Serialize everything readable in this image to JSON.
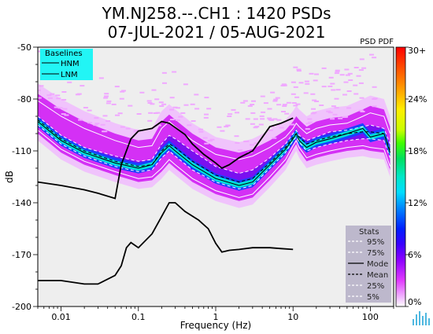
{
  "chart_data": {
    "type": "line",
    "title": [
      "YM.NJ258.--.CH1 : 1420 PSDs",
      "07-JUL-2021 / 05-AUG-2021"
    ],
    "xlabel": "Frequency (Hz)",
    "ylabel": "dB",
    "xscale": "log",
    "xlim": [
      0.005,
      200
    ],
    "ylim": [
      -200,
      -50
    ],
    "xticks": [
      0.01,
      0.1,
      1,
      10,
      100
    ],
    "xtick_labels": [
      "0.01",
      "0.1",
      "1",
      "10",
      "100"
    ],
    "yticks": [
      -50,
      -80,
      -110,
      -140,
      -170,
      -200
    ],
    "ytick_labels": [
      "-50",
      "-80",
      "-110",
      "-140",
      "-170",
      "-200"
    ],
    "baselines": {
      "title": "Baselines",
      "entries": [
        "HNM",
        "LNM"
      ],
      "HNM": {
        "x": [
          0.005,
          0.01,
          0.02,
          0.03,
          0.05,
          0.06,
          0.08,
          0.1,
          0.15,
          0.2,
          0.25,
          0.3,
          0.4,
          0.5,
          0.7,
          1.0,
          1.2,
          1.5,
          2.0,
          3.0,
          5.0,
          7.0,
          10.0
        ],
        "y": [
          -128,
          -130,
          -132.5,
          -134.5,
          -137.5,
          -118,
          -103,
          -98.5,
          -97,
          -93,
          -94,
          -96.5,
          -100.5,
          -106,
          -112,
          -117,
          -120,
          -118,
          -114,
          -110,
          -96,
          -94,
          -91
        ]
      },
      "LNM": {
        "x": [
          0.005,
          0.01,
          0.02,
          0.03,
          0.05,
          0.06,
          0.07,
          0.08,
          0.1,
          0.15,
          0.2,
          0.25,
          0.3,
          0.4,
          0.6,
          0.8,
          1.0,
          1.2,
          1.5,
          2.0,
          3.0,
          5.0,
          7.0,
          10.0
        ],
        "y": [
          -185,
          -185,
          -187,
          -187,
          -182,
          -176.5,
          -166,
          -163,
          -166,
          -158,
          -148,
          -140,
          -140,
          -145,
          -150,
          -155,
          -163.5,
          -168.5,
          -167.5,
          -167,
          -166,
          -166,
          -166.5,
          -167
        ]
      }
    },
    "series": [
      {
        "name": "95%",
        "x": [
          0.005,
          0.01,
          0.02,
          0.05,
          0.1,
          0.15,
          0.2,
          0.25,
          0.3,
          0.5,
          1,
          2,
          3,
          5,
          8,
          10,
          11,
          12,
          15,
          20,
          30,
          50,
          80,
          100,
          150,
          180
        ],
        "y": [
          -81,
          -90,
          -97,
          -104,
          -108,
          -107,
          -97,
          -93,
          -96,
          -104,
          -112,
          -115,
          -113,
          -108,
          -102,
          -97,
          -94,
          -96,
          -100,
          -97,
          -95,
          -94,
          -90,
          -88,
          -90,
          -100
        ]
      },
      {
        "name": "75%",
        "x": [
          0.005,
          0.01,
          0.02,
          0.05,
          0.1,
          0.15,
          0.2,
          0.25,
          0.3,
          0.5,
          1,
          2,
          3,
          5,
          8,
          10,
          11,
          12,
          15,
          20,
          30,
          50,
          80,
          100,
          150,
          180
        ],
        "y": [
          -90,
          -101,
          -108,
          -113,
          -116,
          -115,
          -106,
          -101,
          -103,
          -110,
          -119,
          -123,
          -121,
          -114,
          -106,
          -100,
          -98,
          -101,
          -104,
          -102,
          -99,
          -98,
          -96,
          -95,
          -97,
          -106
        ]
      },
      {
        "name": "Mode",
        "x": [
          0.005,
          0.01,
          0.02,
          0.05,
          0.1,
          0.15,
          0.2,
          0.25,
          0.3,
          0.5,
          1,
          2,
          3,
          5,
          8,
          10,
          11,
          12,
          15,
          20,
          30,
          50,
          80,
          100,
          150,
          180
        ],
        "y": [
          -93,
          -104,
          -111,
          -117,
          -120,
          -118,
          -111,
          -107,
          -110,
          -118,
          -126,
          -130,
          -128,
          -118,
          -109,
          -103,
          -100,
          -104,
          -108,
          -105,
          -103,
          -100,
          -97,
          -102,
          -100,
          -111
        ]
      },
      {
        "name": "Mean",
        "x": [
          0.005,
          0.01,
          0.02,
          0.05,
          0.1,
          0.15,
          0.2,
          0.25,
          0.3,
          0.5,
          1,
          2,
          3,
          5,
          8,
          10,
          11,
          12,
          15,
          20,
          30,
          50,
          80,
          100,
          150,
          180
        ],
        "y": [
          -92,
          -103,
          -110,
          -116,
          -119,
          -118,
          -110,
          -106,
          -108,
          -116,
          -124,
          -128,
          -126,
          -117,
          -108,
          -102,
          -100,
          -102,
          -106,
          -104,
          -102,
          -100,
          -99,
          -99,
          -100,
          -110
        ]
      },
      {
        "name": "25%",
        "x": [
          0.005,
          0.01,
          0.02,
          0.05,
          0.1,
          0.15,
          0.2,
          0.25,
          0.3,
          0.5,
          1,
          2,
          3,
          5,
          8,
          10,
          11,
          12,
          15,
          20,
          30,
          50,
          80,
          100,
          150,
          180
        ],
        "y": [
          -95,
          -106,
          -113,
          -119,
          -122,
          -121,
          -114,
          -110,
          -113,
          -121,
          -128,
          -132,
          -130,
          -120,
          -111,
          -104,
          -102,
          -105,
          -110,
          -108,
          -106,
          -104,
          -103,
          -103,
          -104,
          -114
        ]
      },
      {
        "name": "5%",
        "x": [
          0.005,
          0.01,
          0.02,
          0.05,
          0.1,
          0.15,
          0.2,
          0.25,
          0.3,
          0.5,
          1,
          2,
          3,
          5,
          8,
          10,
          11,
          12,
          15,
          20,
          30,
          50,
          80,
          100,
          150,
          180
        ],
        "y": [
          -98,
          -109,
          -116,
          -122,
          -126,
          -125,
          -120,
          -115,
          -118,
          -126,
          -133,
          -137,
          -135,
          -125,
          -115,
          -107,
          -104,
          -108,
          -114,
          -112,
          -110,
          -108,
          -107,
          -108,
          -109,
          -119
        ]
      }
    ],
    "stats_legend": {
      "title": "Stats",
      "entries": [
        "95%",
        "75%",
        "Mode",
        "Mean",
        "25%",
        "5%"
      ],
      "placement": "bottom-right"
    },
    "colorbar": {
      "title": "PSD PDF",
      "range": [
        0,
        30
      ],
      "tick_labels": [
        "0%",
        "6%",
        "12%",
        "18%",
        "24%",
        "30+"
      ]
    },
    "grid": false
  },
  "colors": {
    "plot_background": "#eeeeee",
    "baseline_legend_bg": "#22f5f5",
    "stats_legend_bg": "#bdb8cc",
    "percentile_lines": "#ffffff",
    "mode_line": "#000000",
    "mean_line": "#000000",
    "baseline_lines": "#000000"
  },
  "icons": [
    "waveform-logo-icon"
  ]
}
